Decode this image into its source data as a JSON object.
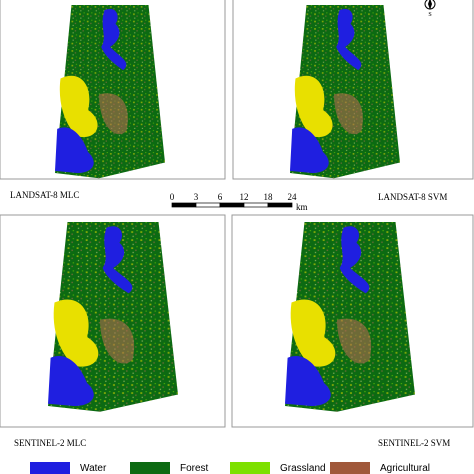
{
  "panels": [
    {
      "label": "LANDSAT-8 MLC"
    },
    {
      "label": "LANDSAT-8 SVM"
    },
    {
      "label": "SENTINEL-2 MLC"
    },
    {
      "label": "SENTINEL-2 SVM"
    }
  ],
  "north_arrow": {
    "label": "S"
  },
  "scale_bar": {
    "labels": [
      "0",
      "3",
      "6",
      "12",
      "18",
      "24"
    ],
    "unit": "km"
  },
  "legend": [
    {
      "label": "Water",
      "color": "#1f1fe0"
    },
    {
      "label": "Forest",
      "color": "#0c6a12"
    },
    {
      "label": "Grassland",
      "color": "#7de000"
    },
    {
      "label": "Agricultural",
      "color": "#a0583a"
    }
  ]
}
